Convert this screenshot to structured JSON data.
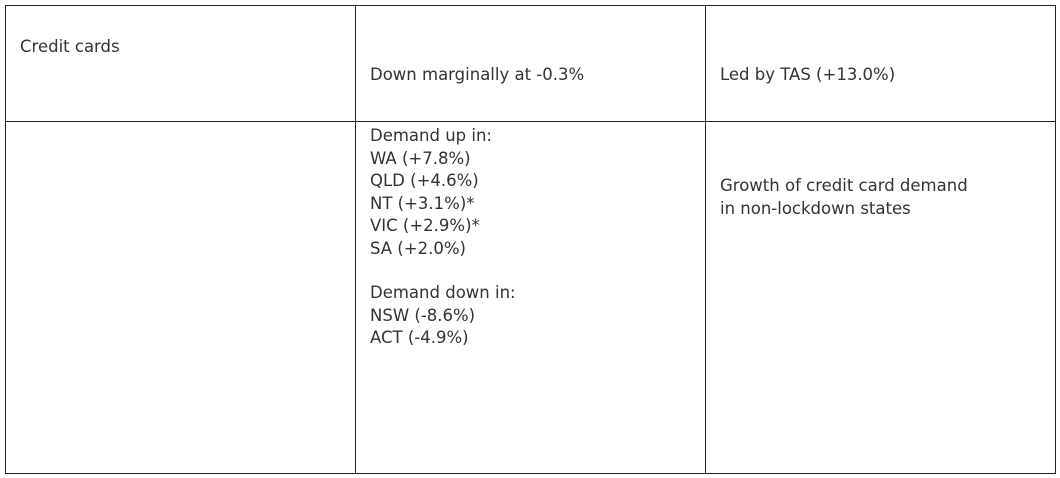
{
  "table": {
    "row1": {
      "col1": "Credit cards",
      "col2": "Down marginally at -0.3%",
      "col3": "Led by TAS (+13.0%)"
    },
    "row2": {
      "col1": "",
      "col2": {
        "up_heading": "Demand up in:",
        "up_items": [
          "WA (+7.8%)",
          "QLD (+4.6%)",
          "NT (+3.1%)*",
          "VIC (+2.9%)*",
          "SA (+2.0%)"
        ],
        "down_heading": "Demand down in:",
        "down_items": [
          "NSW (-8.6%)",
          "ACT (-4.9%)"
        ]
      },
      "col3": {
        "line1": "Growth of credit card demand",
        "line2": "in non-lockdown states"
      }
    }
  }
}
